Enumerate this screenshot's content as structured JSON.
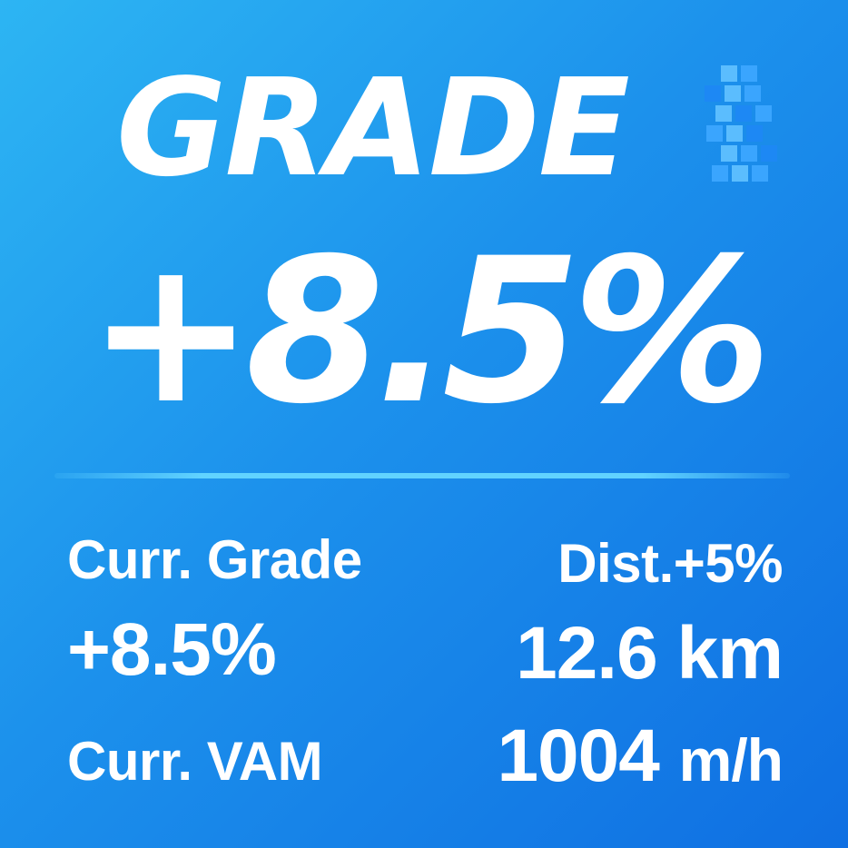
{
  "title": "GRADE",
  "hero": {
    "value": "+8.5%"
  },
  "stats": {
    "left": {
      "grade_label": "Curr. Grade",
      "grade_value": "+8.5%",
      "vam_label": "Curr. VAM"
    },
    "right": {
      "dist_label": "Dist.+5%",
      "dist_value": "12.6 km",
      "vam_value_number": "1004",
      "vam_value_unit": "m/h"
    }
  },
  "colors": {
    "background_start": "#2db5f3",
    "background_end": "#0f6fe2",
    "text": "#ffffff",
    "divider": "#61d3ff",
    "pixel_mark": "#3ca7ff"
  },
  "icons": {
    "pixel_mark": "checkered-pixel-icon"
  }
}
